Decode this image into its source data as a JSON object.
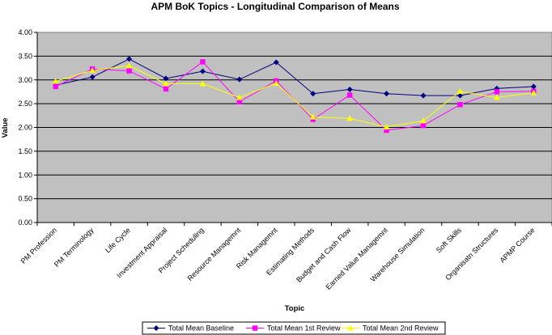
{
  "chart_data": {
    "type": "line",
    "title": "APM BoK Topics - Longitudinal Comparison of Means",
    "xlabel": "Topic",
    "ylabel": "Value",
    "ylim": [
      0,
      4
    ],
    "ytick_step": 0.5,
    "grid": true,
    "plot_background": "#C0C0C0",
    "legend_position": "bottom",
    "categories": [
      "PM Profession",
      "PM Terminology",
      "Life Cycle",
      "Investment Appraisal",
      "Project Scheduling",
      "Resource Managemnt",
      "Risk Managemnt",
      "Estimating Methods",
      "Budget and Cash Flow",
      "Earned Value Managemnt",
      "Warehouse Simulation",
      "Soft Skills",
      "Organisatn Structures",
      "APMP Course"
    ],
    "series": [
      {
        "name": "Total Mean Baseline",
        "color": "#000080",
        "marker": "diamond",
        "values": [
          2.89,
          3.06,
          3.44,
          3.03,
          3.18,
          3.01,
          3.37,
          2.71,
          2.8,
          2.71,
          2.67,
          2.67,
          2.82,
          2.86
        ]
      },
      {
        "name": "Total Mean 1st Review",
        "color": "#FF00FF",
        "marker": "square",
        "values": [
          2.86,
          3.23,
          3.19,
          2.81,
          3.38,
          2.54,
          2.98,
          2.17,
          2.68,
          1.94,
          2.04,
          2.48,
          2.75,
          2.76
        ]
      },
      {
        "name": "Total Mean 2nd Review",
        "color": "#FFFF00",
        "marker": "triangle",
        "values": [
          2.97,
          3.2,
          3.3,
          2.92,
          2.92,
          2.63,
          2.93,
          2.22,
          2.19,
          2.01,
          2.14,
          2.76,
          2.63,
          2.73
        ]
      }
    ]
  }
}
